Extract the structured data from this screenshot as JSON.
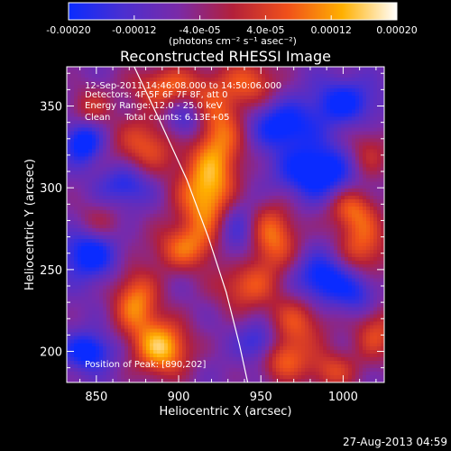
{
  "chart_data": {
    "type": "heatmap",
    "title": "Reconstructed RHESSI Image",
    "xlabel": "Heliocentric X (arcsec)",
    "ylabel": "Heliocentric Y (arcsec)",
    "xlim": [
      832,
      1025
    ],
    "ylim": [
      181,
      374
    ],
    "x_ticks": [
      850,
      900,
      950,
      1000
    ],
    "y_ticks": [
      200,
      250,
      300,
      350
    ],
    "x_tick_labels": [
      "850",
      "900",
      "950",
      "1000"
    ],
    "y_tick_labels": [
      "200",
      "250",
      "300",
      "350"
    ],
    "colorbar": {
      "range": [
        -0.0002,
        0.0002
      ],
      "ticks": [
        -0.0002,
        -0.00012,
        -4e-05,
        4e-05,
        0.00012,
        0.0002
      ],
      "tick_labels": [
        "-0.00020",
        "-0.00012",
        "-4.0e-05",
        "4.0e-05",
        "0.00012",
        "0.00020"
      ],
      "unit": "(photons cm⁻² s⁻¹ asec⁻²)",
      "colors": [
        "#0a2bff",
        "#4b2fd0",
        "#7a2aa8",
        "#b3203a",
        "#f0501a",
        "#ffb000",
        "#ffffff"
      ]
    },
    "annotations": [
      "12-Sep-2011 14:46:08.000 to 14:50:06.000",
      "Detectors: 4F 5F 6F 7F 8F, att 0",
      "Energy Range: 12.0 - 25.0 keV",
      "Clean     Total counts: 6.13E+05",
      "Position of Peak: [890,202]"
    ],
    "peak_position": [
      890,
      202
    ],
    "limb_curve": [
      [
        873,
        374
      ],
      [
        889,
        340
      ],
      [
        905,
        305
      ],
      [
        918,
        270
      ],
      [
        929,
        236
      ],
      [
        937,
        204
      ],
      [
        942,
        181
      ]
    ],
    "blobs": [
      {
        "x": 890,
        "y": 202,
        "v": 0.000205,
        "sx": 12,
        "sy": 12
      },
      {
        "x": 874,
        "y": 230,
        "v": 0.00016,
        "sx": 10,
        "sy": 14
      },
      {
        "x": 917,
        "y": 294,
        "v": 0.000185,
        "sx": 13,
        "sy": 18
      },
      {
        "x": 903,
        "y": 263,
        "v": 0.00012,
        "sx": 14,
        "sy": 10
      },
      {
        "x": 924,
        "y": 335,
        "v": 0.00015,
        "sx": 12,
        "sy": 22
      },
      {
        "x": 880,
        "y": 326,
        "v": 0.00012,
        "sx": 14,
        "sy": 13
      },
      {
        "x": 893,
        "y": 362,
        "v": 0.00013,
        "sx": 16,
        "sy": 9
      },
      {
        "x": 945,
        "y": 365,
        "v": 0.00011,
        "sx": 11,
        "sy": 10
      },
      {
        "x": 957,
        "y": 270,
        "v": 0.00015,
        "sx": 11,
        "sy": 15
      },
      {
        "x": 940,
        "y": 240,
        "v": 0.00012,
        "sx": 13,
        "sy": 11
      },
      {
        "x": 1012,
        "y": 265,
        "v": 0.00013,
        "sx": 11,
        "sy": 15
      },
      {
        "x": 1004,
        "y": 288,
        "v": 0.00011,
        "sx": 10,
        "sy": 9
      },
      {
        "x": 972,
        "y": 218,
        "v": 0.00011,
        "sx": 13,
        "sy": 12
      },
      {
        "x": 963,
        "y": 195,
        "v": 0.00013,
        "sx": 11,
        "sy": 10
      },
      {
        "x": 993,
        "y": 188,
        "v": 0.0001,
        "sx": 11,
        "sy": 9
      },
      {
        "x": 1020,
        "y": 212,
        "v": 0.00011,
        "sx": 10,
        "sy": 13
      },
      {
        "x": 1015,
        "y": 320,
        "v": 9e-05,
        "sx": 10,
        "sy": 12
      },
      {
        "x": 850,
        "y": 276,
        "v": 9e-05,
        "sx": 12,
        "sy": 10
      },
      {
        "x": 846,
        "y": 349,
        "v": 8e-05,
        "sx": 9,
        "sy": 9
      },
      {
        "x": 846,
        "y": 262,
        "v": -0.00016,
        "sx": 12,
        "sy": 12
      },
      {
        "x": 842,
        "y": 328,
        "v": -0.00015,
        "sx": 8,
        "sy": 9
      },
      {
        "x": 845,
        "y": 200,
        "v": -0.00014,
        "sx": 10,
        "sy": 8
      },
      {
        "x": 985,
        "y": 310,
        "v": -0.00016,
        "sx": 17,
        "sy": 12
      },
      {
        "x": 963,
        "y": 338,
        "v": -0.00013,
        "sx": 14,
        "sy": 10
      },
      {
        "x": 988,
        "y": 244,
        "v": -0.00014,
        "sx": 12,
        "sy": 11
      },
      {
        "x": 935,
        "y": 275,
        "v": -0.0001,
        "sx": 9,
        "sy": 16
      },
      {
        "x": 905,
        "y": 340,
        "v": -0.0001,
        "sx": 9,
        "sy": 10
      },
      {
        "x": 1000,
        "y": 352,
        "v": -0.00012,
        "sx": 14,
        "sy": 10
      },
      {
        "x": 1010,
        "y": 235,
        "v": -9e-05,
        "sx": 9,
        "sy": 10
      },
      {
        "x": 868,
        "y": 302,
        "v": -0.0001,
        "sx": 11,
        "sy": 9
      },
      {
        "x": 950,
        "y": 205,
        "v": -0.00011,
        "sx": 9,
        "sy": 9
      }
    ]
  },
  "footer": {
    "timestamp": "27-Aug-2013 04:59"
  }
}
